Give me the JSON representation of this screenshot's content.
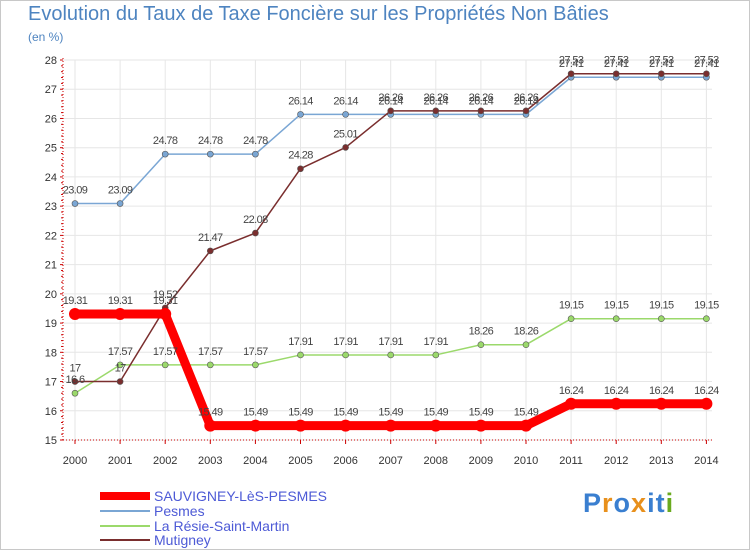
{
  "chart_data": {
    "type": "line",
    "title": "Evolution du Taux de Taxe Foncière sur les Propriétés Non Bâties",
    "subtitle": "(en %)",
    "x": [
      "2000",
      "2001",
      "2002",
      "2003",
      "2004",
      "2005",
      "2006",
      "2007",
      "2008",
      "2009",
      "2010",
      "2011",
      "2012",
      "2013",
      "2014"
    ],
    "ylim": [
      15,
      28
    ],
    "yticks": [
      "15",
      "16",
      "17",
      "18",
      "19",
      "20",
      "21",
      "22",
      "23",
      "24",
      "25",
      "26",
      "27",
      "28"
    ],
    "grid": true,
    "legend_position": "bottom-left",
    "series": [
      {
        "name": "SAUVIGNEY-LèS-PESMES",
        "color": "#ff0000",
        "values": [
          19.31,
          19.31,
          19.31,
          15.49,
          15.49,
          15.49,
          15.49,
          15.49,
          15.49,
          15.49,
          15.49,
          16.24,
          16.24,
          16.24,
          16.24
        ],
        "labels": [
          "19.31",
          "19.31",
          "19.31",
          "15.49",
          "15.49",
          "15.49",
          "15.49",
          "15.49",
          "15.49",
          "15.49",
          "15.49",
          "16.24",
          "16.24",
          "16.24",
          "16.24"
        ]
      },
      {
        "name": "Pesmes",
        "color": "#7aa6d4",
        "values": [
          23.09,
          23.09,
          24.78,
          24.78,
          24.78,
          26.14,
          26.14,
          26.14,
          26.14,
          26.14,
          26.14,
          27.41,
          27.41,
          27.41,
          27.41
        ],
        "labels": [
          "23.09",
          "23.09",
          "24.78",
          "24.78",
          "24.78",
          "26.14",
          "26.14",
          "26.14",
          "26.14",
          "26.14",
          "26.14",
          "27.41",
          "27.41",
          "27.41",
          "27.41"
        ]
      },
      {
        "name": "La Résie-Saint-Martin",
        "color": "#9bd96b",
        "values": [
          16.6,
          17.57,
          17.57,
          17.57,
          17.57,
          17.91,
          17.91,
          17.91,
          17.91,
          18.26,
          18.26,
          19.15,
          19.15,
          19.15,
          19.15
        ],
        "labels": [
          "16.6",
          "17.57",
          "17.57",
          "17.57",
          "17.57",
          "17.91",
          "17.91",
          "17.91",
          "17.91",
          "18.26",
          "18.26",
          "19.15",
          "19.15",
          "19.15",
          "19.15"
        ]
      },
      {
        "name": "Mutigney",
        "color": "#7a2e2e",
        "values": [
          17,
          17,
          19.52,
          21.47,
          22.08,
          24.28,
          25.01,
          26.26,
          26.26,
          26.26,
          26.26,
          27.53,
          27.53,
          27.53,
          27.53
        ],
        "labels": [
          "17",
          "17",
          "19.52",
          "21.47",
          "22.08",
          "24.28",
          "25.01",
          "26.26",
          "26.26",
          "26.26",
          "26.26",
          "27.53",
          "27.53",
          "27.53",
          "27.53"
        ]
      }
    ]
  },
  "logo": {
    "letters": [
      "P",
      "r",
      "o",
      "x",
      "i",
      "t",
      "i"
    ],
    "colors": [
      "#3a7fd0",
      "#e8901c",
      "#3a7fd0",
      "#e8901c",
      "#3a7fd0",
      "#3a7fd0",
      "#6aaa1e"
    ]
  }
}
